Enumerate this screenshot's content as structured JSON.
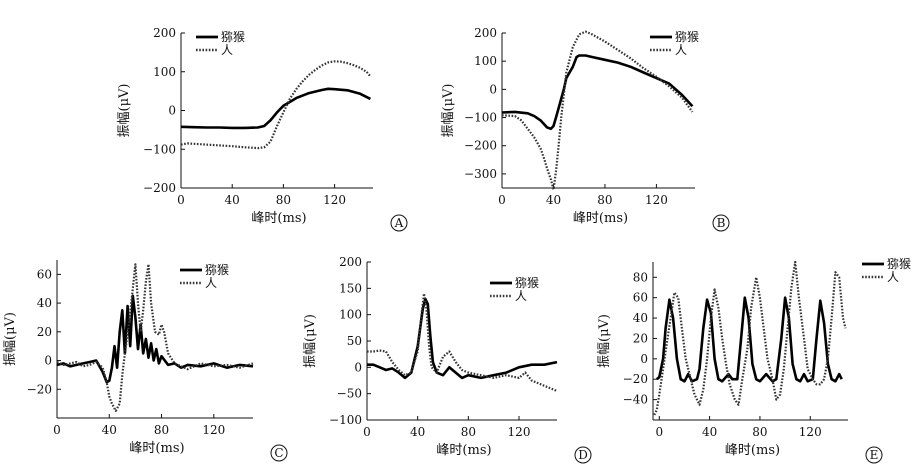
{
  "chart_data": [
    {
      "panel": "A",
      "type": "line",
      "xlabel": "峰时(ms)",
      "ylabel": "振幅(μV)",
      "xlim": [
        0,
        150
      ],
      "ylim": [
        -200,
        200
      ],
      "xticks": [
        0,
        40,
        80,
        120
      ],
      "yticks": [
        -200,
        -100,
        0,
        100,
        200
      ],
      "xtick_labels": [
        "0",
        "40",
        "80",
        "120"
      ],
      "ytick_labels": [
        "−200",
        "−100",
        "0",
        "100",
        "200"
      ],
      "legend_position": "top-left",
      "series": [
        {
          "name": "猕猴",
          "style": "solid",
          "x": [
            0,
            10,
            20,
            30,
            40,
            50,
            60,
            65,
            70,
            75,
            80,
            85,
            90,
            100,
            110,
            115,
            120,
            130,
            140,
            148
          ],
          "y": [
            -42,
            -43,
            -44,
            -44,
            -45,
            -45,
            -44,
            -40,
            -25,
            -5,
            12,
            22,
            32,
            45,
            53,
            56,
            55,
            52,
            43,
            30
          ]
        },
        {
          "name": "人",
          "style": "dotted",
          "x": [
            0,
            5,
            10,
            20,
            30,
            40,
            50,
            60,
            65,
            70,
            75,
            80,
            85,
            90,
            95,
            100,
            105,
            110,
            115,
            120,
            125,
            130,
            135,
            140,
            145,
            148
          ],
          "y": [
            -88,
            -85,
            -86,
            -88,
            -90,
            -92,
            -95,
            -97,
            -95,
            -80,
            -40,
            -5,
            30,
            55,
            75,
            92,
            105,
            116,
            124,
            127,
            126,
            122,
            117,
            110,
            100,
            88
          ]
        }
      ]
    },
    {
      "panel": "B",
      "type": "line",
      "xlabel": "峰时(ms)",
      "ylabel": "振幅(μV)",
      "xlim": [
        0,
        150
      ],
      "ylim": [
        -350,
        200
      ],
      "xticks": [
        0,
        40,
        80,
        120
      ],
      "yticks": [
        -300,
        -200,
        -100,
        0,
        100,
        200
      ],
      "xtick_labels": [
        "0",
        "40",
        "80",
        "120"
      ],
      "ytick_labels": [
        "−300",
        "−200",
        "−100",
        "0",
        "100",
        "200"
      ],
      "legend_position": "top-right",
      "series": [
        {
          "name": "猕猴",
          "style": "solid",
          "x": [
            0,
            10,
            20,
            25,
            30,
            35,
            38,
            40,
            42,
            45,
            48,
            50,
            55,
            58,
            60,
            65,
            70,
            80,
            90,
            100,
            110,
            120,
            130,
            140,
            148
          ],
          "y": [
            -82,
            -80,
            -85,
            -95,
            -110,
            -135,
            -140,
            -130,
            -100,
            -50,
            0,
            40,
            80,
            115,
            120,
            120,
            115,
            105,
            95,
            80,
            60,
            40,
            20,
            -20,
            -60
          ]
        },
        {
          "name": "人",
          "style": "dotted",
          "x": [
            0,
            10,
            15,
            20,
            25,
            30,
            33,
            35,
            38,
            40,
            42,
            44,
            46,
            48,
            50,
            55,
            60,
            65,
            70,
            80,
            90,
            100,
            110,
            120,
            130,
            140,
            148
          ],
          "y": [
            -92,
            -95,
            -110,
            -140,
            -170,
            -210,
            -250,
            -280,
            -320,
            -355,
            -290,
            -200,
            -100,
            -20,
            60,
            150,
            195,
            205,
            195,
            170,
            140,
            110,
            75,
            45,
            10,
            -30,
            -80
          ]
        }
      ]
    },
    {
      "panel": "C",
      "type": "line",
      "xlabel": "峰时(ms)",
      "ylabel": "振幅(μV)",
      "xlim": [
        0,
        150
      ],
      "ylim": [
        -40,
        70
      ],
      "xticks": [
        0,
        40,
        80,
        120
      ],
      "yticks": [
        -20,
        0,
        20,
        40,
        60
      ],
      "xtick_labels": [
        "0",
        "40",
        "80",
        "120"
      ],
      "ytick_labels": [
        "−20",
        "0",
        "20",
        "40",
        "60"
      ],
      "legend_position": "top-right",
      "series": [
        {
          "name": "猕猴",
          "style": "solid",
          "x": [
            0,
            5,
            10,
            15,
            20,
            25,
            30,
            35,
            38,
            40,
            42,
            44,
            46,
            48,
            50,
            52,
            54,
            56,
            58,
            60,
            62,
            64,
            66,
            68,
            70,
            72,
            74,
            76,
            78,
            80,
            85,
            90,
            95,
            100,
            110,
            120,
            130,
            140,
            150
          ],
          "y": [
            -3,
            -2,
            -4,
            -3,
            -2,
            -1,
            0,
            -8,
            -15,
            -14,
            -5,
            10,
            -5,
            20,
            35,
            5,
            38,
            10,
            45,
            30,
            8,
            25,
            5,
            15,
            2,
            12,
            0,
            8,
            -2,
            3,
            -3,
            -2,
            -5,
            -3,
            -4,
            -2,
            -5,
            -3,
            -4
          ]
        },
        {
          "name": "人",
          "style": "dotted",
          "x": [
            0,
            5,
            10,
            15,
            20,
            25,
            30,
            35,
            38,
            40,
            42,
            45,
            48,
            50,
            52,
            55,
            58,
            60,
            62,
            64,
            66,
            68,
            70,
            72,
            75,
            78,
            80,
            82,
            85,
            90,
            95,
            100,
            110,
            120,
            130,
            140,
            150
          ],
          "y": [
            -1,
            -3,
            -2,
            -1,
            -4,
            -3,
            -1,
            -5,
            -15,
            -25,
            -30,
            -35,
            -30,
            -10,
            5,
            25,
            50,
            67,
            40,
            20,
            35,
            55,
            67,
            40,
            20,
            18,
            25,
            20,
            5,
            -2,
            -4,
            -6,
            -2,
            -4,
            -3,
            -5,
            -2
          ]
        }
      ]
    },
    {
      "panel": "D",
      "type": "line",
      "xlabel": "峰时(ms)",
      "ylabel": "振幅(μV)",
      "xlim": [
        0,
        150
      ],
      "ylim": [
        -100,
        200
      ],
      "xticks": [
        0,
        40,
        80,
        120
      ],
      "yticks": [
        -100,
        -50,
        0,
        50,
        100,
        150,
        200
      ],
      "xtick_labels": [
        "0",
        "40",
        "80",
        "120"
      ],
      "ytick_labels": [
        "−100",
        "−50",
        "0",
        "50",
        "100",
        "150",
        "200"
      ],
      "legend_position": "top-right",
      "series": [
        {
          "name": "猕猴",
          "style": "solid",
          "x": [
            0,
            5,
            10,
            15,
            20,
            25,
            30,
            35,
            40,
            44,
            46,
            48,
            50,
            52,
            55,
            60,
            65,
            70,
            75,
            80,
            90,
            100,
            110,
            120,
            130,
            140,
            150
          ],
          "y": [
            5,
            5,
            0,
            -5,
            -2,
            -10,
            -20,
            -10,
            40,
            110,
            130,
            120,
            60,
            10,
            -10,
            -15,
            0,
            -10,
            -20,
            -15,
            -20,
            -15,
            -10,
            0,
            5,
            5,
            10
          ]
        },
        {
          "name": "人",
          "style": "dotted",
          "x": [
            0,
            5,
            10,
            15,
            20,
            25,
            30,
            35,
            38,
            40,
            43,
            45,
            47,
            49,
            51,
            55,
            60,
            65,
            70,
            75,
            80,
            90,
            100,
            110,
            120,
            125,
            130,
            140,
            150
          ],
          "y": [
            30,
            30,
            32,
            30,
            10,
            -5,
            -15,
            -10,
            15,
            30,
            100,
            140,
            110,
            40,
            0,
            -10,
            20,
            30,
            10,
            -5,
            -10,
            -15,
            -20,
            -15,
            -20,
            -10,
            -25,
            -35,
            -45
          ]
        }
      ]
    },
    {
      "panel": "E",
      "type": "line",
      "xlabel": "峰时(ms)",
      "ylabel": "振幅(μV)",
      "xlim": [
        -5,
        150
      ],
      "ylim": [
        -60,
        95
      ],
      "xticks": [
        0,
        40,
        80,
        120
      ],
      "yticks": [
        -40,
        -20,
        0,
        20,
        40,
        60,
        80
      ],
      "xtick_labels": [
        "0",
        "40",
        "80",
        "120"
      ],
      "ytick_labels": [
        "−40",
        "−20",
        "0",
        "20",
        "40",
        "60",
        "80"
      ],
      "legend_position": "top-right",
      "series": [
        {
          "name": "猕猴",
          "style": "solid",
          "x": [
            -2,
            0,
            3,
            5,
            8,
            11,
            14,
            17,
            20,
            23,
            26,
            30,
            32,
            35,
            38,
            41,
            44,
            47,
            50,
            55,
            58,
            62,
            65,
            68,
            71,
            74,
            77,
            80,
            85,
            90,
            93,
            97,
            100,
            103,
            106,
            109,
            112,
            115,
            118,
            122,
            125,
            128,
            131,
            134,
            137,
            140,
            143,
            145
          ],
          "y": [
            -20,
            -18,
            0,
            30,
            58,
            40,
            0,
            -20,
            -22,
            -15,
            -22,
            -20,
            -10,
            30,
            58,
            45,
            0,
            -20,
            -22,
            -15,
            -20,
            -20,
            20,
            60,
            40,
            -5,
            -20,
            -22,
            -15,
            -22,
            -20,
            20,
            60,
            40,
            -5,
            -20,
            -22,
            -15,
            -22,
            -20,
            20,
            57,
            35,
            -5,
            -20,
            -22,
            -15,
            -20
          ]
        },
        {
          "name": "人",
          "style": "dotted",
          "x": [
            -4,
            -2,
            0,
            3,
            6,
            9,
            12,
            15,
            18,
            21,
            25,
            28,
            32,
            35,
            38,
            41,
            44,
            47,
            50,
            53,
            56,
            60,
            63,
            66,
            70,
            73,
            77,
            80,
            83,
            86,
            90,
            93,
            96,
            99,
            102,
            105,
            108,
            111,
            115,
            118,
            122,
            125,
            128,
            131,
            134,
            137,
            140,
            143,
            146,
            148
          ],
          "y": [
            -55,
            -50,
            -35,
            -10,
            15,
            40,
            65,
            60,
            30,
            0,
            -20,
            -35,
            -45,
            -30,
            0,
            40,
            68,
            50,
            20,
            -5,
            -25,
            -40,
            -45,
            -20,
            10,
            50,
            80,
            60,
            30,
            0,
            -20,
            -40,
            -35,
            -10,
            30,
            70,
            95,
            60,
            20,
            -10,
            -20,
            -25,
            -25,
            -20,
            0,
            40,
            85,
            80,
            40,
            30
          ]
        }
      ]
    }
  ],
  "panels": [
    {
      "letter": "A",
      "legend": [
        "猕猴",
        "人"
      ],
      "xlabel": "峰时(ms)",
      "ylabel": "振幅(μV)"
    },
    {
      "letter": "B",
      "legend": [
        "猕猴",
        "人"
      ],
      "xlabel": "峰时(ms)",
      "ylabel": "振幅(μV)"
    },
    {
      "letter": "C",
      "legend": [
        "猕猴",
        "人"
      ],
      "xlabel": "峰时(ms)",
      "ylabel": "振幅(μV)"
    },
    {
      "letter": "D",
      "legend": [
        "猕猴",
        "人"
      ],
      "xlabel": "峰时(ms)",
      "ylabel": "振幅(μV)"
    },
    {
      "letter": "E",
      "legend": [
        "猕猴",
        "人"
      ],
      "xlabel": "峰时(ms)",
      "ylabel": "振幅(μV)"
    }
  ]
}
